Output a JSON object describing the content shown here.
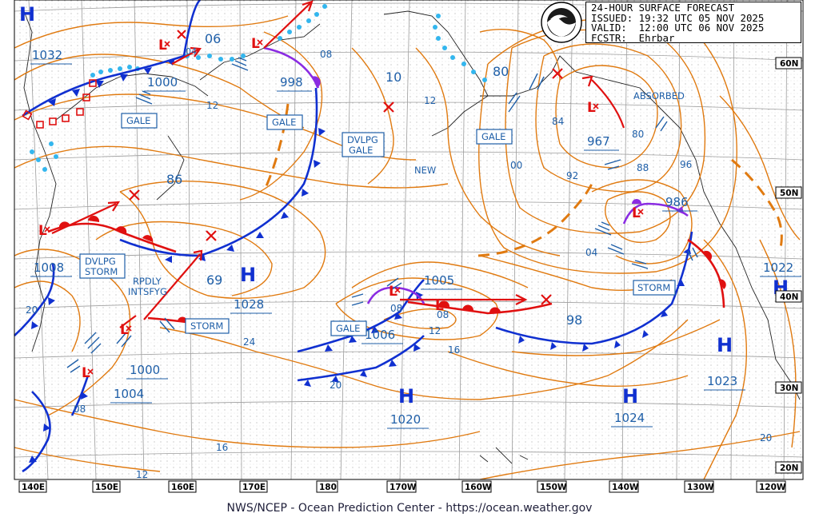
{
  "header": {
    "line1": "24-HOUR SURFACE FORECAST",
    "line2": "ISSUED: 19:32 UTC 05 NOV 2025",
    "line3": "VALID:  12:00 UTC 06 NOV 2025",
    "line4": "FCSTR:  Ehrbar"
  },
  "footer": "NWS/NCEP - Ocean Prediction Center - https://ocean.weather.gov",
  "logo_alt": "NOAA",
  "lon_labels": [
    "140E",
    "150E",
    "160E",
    "170E",
    "180",
    "170W",
    "160W",
    "150W",
    "140W",
    "130W",
    "120W"
  ],
  "lat_labels": [
    "60N",
    "50N",
    "40N",
    "30N",
    "20N"
  ],
  "highs": [
    {
      "id": "h1",
      "label": "H",
      "value": "1032"
    },
    {
      "id": "h2",
      "label": "H",
      "value": "1028"
    },
    {
      "id": "h3",
      "label": "H",
      "value": "1020"
    },
    {
      "id": "h4",
      "label": "H",
      "value": "1024"
    },
    {
      "id": "h5",
      "label": "H",
      "value": "1023"
    },
    {
      "id": "h6",
      "label": "H",
      "value": "1022"
    }
  ],
  "lows": [
    {
      "id": "l1",
      "value": "1000"
    },
    {
      "id": "l2",
      "value": "998"
    },
    {
      "id": "l3",
      "value": "967"
    },
    {
      "id": "l4",
      "value": "986"
    },
    {
      "id": "l5",
      "value": "1008"
    },
    {
      "id": "l6",
      "value": "1006"
    },
    {
      "id": "l7",
      "value": "1005"
    },
    {
      "id": "l8",
      "value": "1000"
    },
    {
      "id": "l9",
      "value": "1004"
    }
  ],
  "warnings": [
    {
      "id": "w1",
      "text": "GALE"
    },
    {
      "id": "w2",
      "text": "GALE"
    },
    {
      "id": "w3",
      "lines": [
        "DVLPG",
        "GALE"
      ]
    },
    {
      "id": "w4",
      "text": "GALE"
    },
    {
      "id": "w5",
      "lines": [
        "DVLPG",
        "STORM"
      ]
    },
    {
      "id": "w6",
      "text": "STORM"
    },
    {
      "id": "w7",
      "text": "STORM"
    },
    {
      "id": "w8",
      "text": "GALE"
    }
  ],
  "annotations": {
    "absorbed": "ABSORBED",
    "new": "NEW",
    "rpdly": [
      "RPDLY",
      "INTSFYG"
    ]
  },
  "isobar_labels": [
    "06",
    "04",
    "12",
    "08",
    "10",
    "12",
    "80",
    "84",
    "80",
    "88",
    "96",
    "00",
    "92",
    "86",
    "69",
    "24",
    "04",
    "08",
    "12",
    "16",
    "98",
    "20",
    "20",
    "08",
    "16",
    "12",
    "08",
    "20"
  ],
  "colors": {
    "isobar": "#e07a10",
    "cold_front": "#1030d0",
    "warm_front": "#e01010",
    "occluded_front": "#8a2be2",
    "ice": "#33b6ee",
    "text_blue": "#1f5fa8",
    "grid": "#b8b8b8"
  }
}
